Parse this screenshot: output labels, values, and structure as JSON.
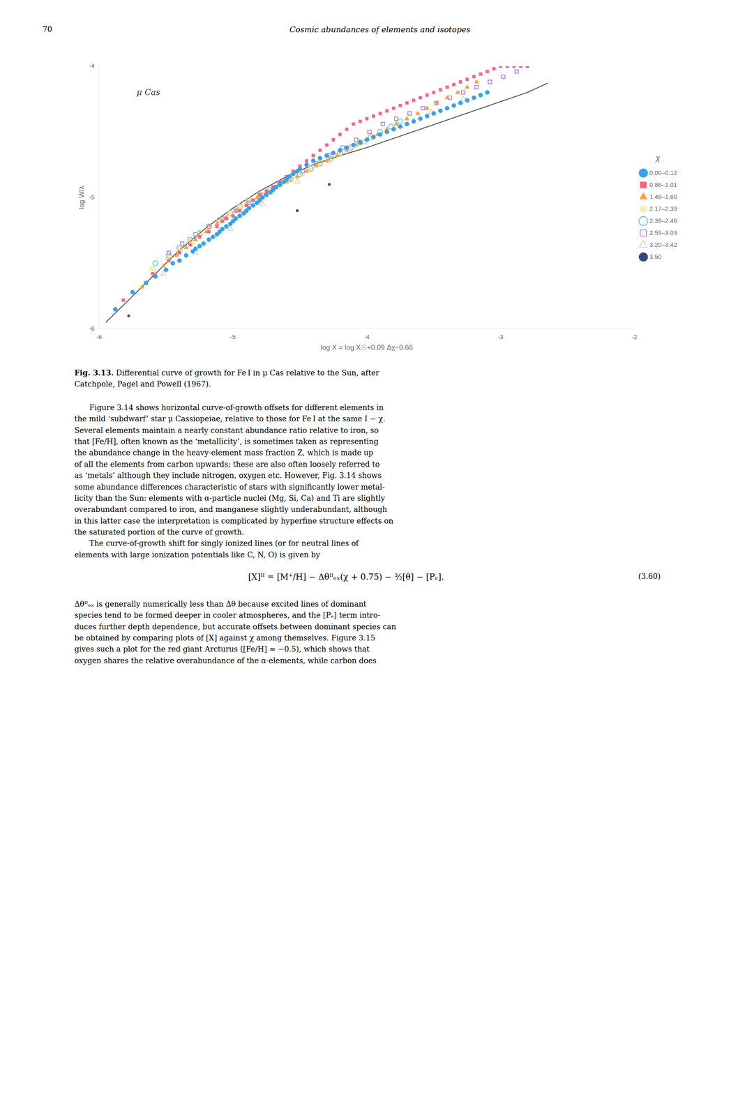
{
  "page": {
    "page_number": "70",
    "running_head": "Cosmic abundances of elements and isotopes",
    "caption_label": "Fig. 3.13.",
    "caption": " Differential curve of growth for Fe I in μ Cas relative to the Sun, after\nCatchpole, Pagel and Powell (1967).",
    "body": [
      "Figure 3.14 shows horizontal curve-of-growth offsets for different elements in\nthe mild ‘subdwarf’ star μ Cassiopeiae, relative to those for Fe I at the same I − χ.\nSeveral elements maintain a nearly constant abundance ratio relative to iron, so\nthat [Fe/H], often known as the ‘metallicity’, is sometimes taken as representing\nthe abundance change in the heavy-element mass fraction Z, which is made up\nof all the elements from carbon upwards; these are also often loosely referred to\nas ‘metals’ although they include nitrogen, oxygen etc. However, Fig. 3.14 shows\nsome abundance differences characteristic of stars with significantly lower metal-\nlicity than the Sun: elements with α-particle nuclei (Mg, Si, Ca) and Ti are slightly\noverabundant compared to iron, and manganese slightly underabundant, although\nin this latter case the interpretation is complicated by hyperfine structure effects on\nthe saturated portion of the curve of growth.",
      "The curve-of-growth shift for singly ionized lines (or for neutral lines of\nelements with large ionization potentials like C, N, O) is given by"
    ],
    "equation": "[X]ᴵᴵ = [M⁺/H] − Δθᴵᴵₑₓ(χ + 0.75) − ³⁄₂[θ] − [Pₑ].",
    "equation_number": "(3.60)",
    "body_after": "Δθᴵᴵₑₓ is generally numerically less than Δθ because excited lines of dominant\nspecies tend to be formed deeper in cooler atmospheres, and the [Pₑ] term intro-\nduces further depth dependence, but accurate offsets between dominant species can\nbe obtained by comparing plots of [X] against χ among themselves. Figure 3.15\ngives such a plot for the red giant Arcturus ([Fe/H] ≃ −0.5), which shows that\noxygen shares the relative overabundance of the α-elements, while carbon does"
  },
  "chart_data": {
    "type": "scatter",
    "xlabel": "log X = log X☉+0.09 Δχ−0.66",
    "ylabel": "log W/λ",
    "xlim": [
      -6.0,
      -2.0
    ],
    "ylim": [
      -6.0,
      -4.0
    ],
    "xticks": [
      -6,
      -5,
      -4,
      -3,
      -2
    ],
    "yticks": [
      -6,
      -5,
      -4
    ],
    "grid": false,
    "legend": "right",
    "legend_title": "χ",
    "annotations": [
      {
        "text": "μ Cas",
        "x": -5.72,
        "y": -4.22
      }
    ],
    "series": [
      {
        "name": "0.00–0.12",
        "marker": "circle",
        "x": [
          -5.88,
          -5.75,
          -5.65,
          -5.58,
          -5.5,
          -5.45,
          -5.4,
          -5.35,
          -5.3,
          -5.28,
          -5.25,
          -5.22,
          -5.18,
          -5.15,
          -5.12,
          -5.1,
          -5.08,
          -5.05,
          -5.02,
          -5.0,
          -4.98,
          -4.95,
          -4.92,
          -4.9,
          -4.88,
          -4.85,
          -4.82,
          -4.8,
          -4.78,
          -4.75,
          -4.72,
          -4.7,
          -4.68,
          -4.65,
          -4.62,
          -4.6,
          -4.58,
          -4.55,
          -4.52,
          -4.5,
          -4.45,
          -4.4,
          -4.35,
          -4.3,
          -4.25,
          -4.2,
          -4.15,
          -4.1,
          -4.05,
          -4.0,
          -3.95,
          -3.9,
          -3.85,
          -3.8,
          -3.75,
          -3.7,
          -3.65,
          -3.6,
          -3.55,
          -3.5,
          -3.45,
          -3.4,
          -3.35,
          -3.3,
          -3.25,
          -3.2,
          -3.15,
          -3.1
        ],
        "values": [
          -5.85,
          -5.72,
          -5.65,
          -5.6,
          -5.55,
          -5.5,
          -5.48,
          -5.44,
          -5.41,
          -5.39,
          -5.37,
          -5.35,
          -5.32,
          -5.3,
          -5.28,
          -5.26,
          -5.24,
          -5.22,
          -5.2,
          -5.18,
          -5.16,
          -5.14,
          -5.12,
          -5.1,
          -5.08,
          -5.06,
          -5.04,
          -5.02,
          -5.0,
          -4.98,
          -4.96,
          -4.94,
          -4.92,
          -4.9,
          -4.88,
          -4.86,
          -4.84,
          -4.82,
          -4.8,
          -4.78,
          -4.75,
          -4.72,
          -4.7,
          -4.68,
          -4.66,
          -4.64,
          -4.62,
          -4.6,
          -4.58,
          -4.56,
          -4.54,
          -4.52,
          -4.5,
          -4.48,
          -4.46,
          -4.44,
          -4.42,
          -4.4,
          -4.38,
          -4.36,
          -4.34,
          -4.32,
          -4.3,
          -4.28,
          -4.26,
          -4.24,
          -4.22,
          -4.2
        ]
      },
      {
        "name": "0.86–1.01",
        "marker": "square",
        "x": [
          -5.82,
          -5.6,
          -5.48,
          -5.4,
          -5.32,
          -5.25,
          -5.18,
          -5.12,
          -5.08,
          -5.05,
          -5.0,
          -4.95,
          -4.9,
          -4.85,
          -4.8,
          -4.75,
          -4.7,
          -4.65,
          -4.6,
          -4.55,
          -4.5,
          -4.45,
          -4.4,
          -4.35,
          -4.3,
          -4.25,
          -4.2,
          -4.15,
          -4.1,
          -4.05,
          -4.0,
          -3.95,
          -3.9,
          -3.85,
          -3.8,
          -3.75,
          -3.7,
          -3.65,
          -3.6,
          -3.55,
          -3.5,
          -3.45,
          -3.4,
          -3.35,
          -3.3,
          -3.25,
          -3.2,
          -3.15,
          -3.1,
          -3.05,
          -3.0,
          -2.95,
          -2.9,
          -2.85,
          -2.8
        ],
        "values": [
          -5.78,
          -5.58,
          -5.48,
          -5.42,
          -5.36,
          -5.3,
          -5.26,
          -5.22,
          -5.18,
          -5.16,
          -5.14,
          -5.1,
          -5.06,
          -5.02,
          -4.98,
          -4.95,
          -4.92,
          -4.88,
          -4.84,
          -4.8,
          -4.76,
          -4.72,
          -4.68,
          -4.64,
          -4.6,
          -4.56,
          -4.52,
          -4.48,
          -4.44,
          -4.42,
          -4.4,
          -4.38,
          -4.36,
          -4.34,
          -4.32,
          -4.3,
          -4.28,
          -4.26,
          -4.24,
          -4.22,
          -4.2,
          -4.18,
          -4.16,
          -4.14,
          -4.12,
          -4.1,
          -4.08,
          -4.06,
          -4.04,
          -4.02,
          -4.0,
          -4.0,
          -4.0,
          -4.0,
          -4.0
        ]
      },
      {
        "name": "1.48–1.60",
        "marker": "triangle",
        "x": [
          -5.68,
          -5.52,
          -5.42,
          -5.35,
          -5.28,
          -5.2,
          -5.12,
          -5.05,
          -4.98,
          -4.9,
          -4.82,
          -4.75,
          -4.68,
          -4.6,
          -4.52,
          -4.45,
          -4.38,
          -4.3,
          -4.22,
          -4.15,
          -4.08,
          -4.0,
          -3.92,
          -3.85,
          -3.78,
          -3.7,
          -3.62,
          -3.55,
          -3.48,
          -3.4,
          -3.32,
          -3.25,
          -3.18
        ],
        "values": [
          -5.68,
          -5.52,
          -5.44,
          -5.38,
          -5.32,
          -5.26,
          -5.2,
          -5.15,
          -5.1,
          -5.05,
          -5.0,
          -4.96,
          -4.92,
          -4.88,
          -4.84,
          -4.8,
          -4.76,
          -4.72,
          -4.68,
          -4.64,
          -4.6,
          -4.56,
          -4.52,
          -4.48,
          -4.44,
          -4.4,
          -4.36,
          -4.32,
          -4.28,
          -4.24,
          -4.2,
          -4.16,
          -4.12
        ]
      },
      {
        "name": "2.17–2.39",
        "marker": "bullseye",
        "x": [
          -5.6,
          -5.48,
          -5.4,
          -5.32,
          -5.25,
          -5.18,
          -5.1,
          -5.02,
          -4.95,
          -4.88,
          -4.8,
          -4.72,
          -4.65,
          -4.57,
          -4.5,
          -4.42,
          -4.35,
          -4.27,
          -4.2,
          -4.12,
          -4.05,
          -3.97
        ],
        "values": [
          -5.55,
          -5.46,
          -5.4,
          -5.34,
          -5.28,
          -5.22,
          -5.17,
          -5.12,
          -5.07,
          -5.02,
          -4.98,
          -4.94,
          -4.9,
          -4.86,
          -4.82,
          -4.78,
          -4.74,
          -4.7,
          -4.66,
          -4.62,
          -4.58,
          -4.54
        ]
      },
      {
        "name": "2.39–2.46",
        "marker": "open_circle",
        "x": [
          -5.58,
          -5.48,
          -5.4,
          -5.32,
          -5.25,
          -5.18,
          -5.1,
          -5.02,
          -4.95,
          -4.88,
          -4.8,
          -4.72,
          -4.65,
          -4.57,
          -4.5,
          -4.42,
          -4.35,
          -4.27,
          -4.2,
          -4.12,
          -4.05,
          -3.97,
          -3.9,
          -3.82,
          -3.75
        ],
        "values": [
          -5.5,
          -5.44,
          -5.38,
          -5.32,
          -5.27,
          -5.22,
          -5.17,
          -5.12,
          -5.07,
          -5.02,
          -4.98,
          -4.94,
          -4.9,
          -4.86,
          -4.82,
          -4.78,
          -4.74,
          -4.7,
          -4.66,
          -4.62,
          -4.58,
          -4.54,
          -4.5,
          -4.46,
          -4.42
        ]
      },
      {
        "name": "2.55–3.03",
        "marker": "open_square",
        "x": [
          -5.48,
          -5.38,
          -5.28,
          -5.18,
          -5.08,
          -4.98,
          -4.88,
          -4.78,
          -4.68,
          -4.58,
          -4.48,
          -4.38,
          -4.28,
          -4.18,
          -4.08,
          -3.98,
          -3.88,
          -3.78,
          -3.68,
          -3.58,
          -3.48,
          -3.38,
          -3.28,
          -3.18,
          -3.08,
          -2.98,
          -2.88
        ],
        "values": [
          -5.42,
          -5.35,
          -5.28,
          -5.22,
          -5.16,
          -5.1,
          -5.04,
          -4.98,
          -4.92,
          -4.86,
          -4.8,
          -4.74,
          -4.68,
          -4.62,
          -4.56,
          -4.5,
          -4.44,
          -4.4,
          -4.36,
          -4.32,
          -4.28,
          -4.24,
          -4.2,
          -4.16,
          -4.12,
          -4.08,
          -4.04
        ]
      },
      {
        "name": "3.20–3.42",
        "marker": "open_triangle",
        "x": [
          -5.52,
          -5.28,
          -5.02,
          -4.78,
          -4.52,
          -4.28,
          -4.02,
          -3.78,
          -3.52,
          -3.28
        ],
        "values": [
          -5.58,
          -5.42,
          -5.24,
          -5.05,
          -4.88,
          -4.72,
          -4.58,
          -4.46,
          -4.35,
          -4.25
        ]
      },
      {
        "name": "3.50",
        "marker": "dot",
        "x": [
          -5.78,
          -4.52,
          -4.28
        ],
        "values": [
          -5.9,
          -5.1,
          -4.9
        ]
      },
      {
        "type": "line",
        "line_style": "solid",
        "x": [
          -5.95,
          -5.8,
          -5.6,
          -5.4,
          -5.2,
          -5.0,
          -4.8,
          -4.6,
          -4.4,
          -4.2,
          -4.0,
          -3.8,
          -3.6,
          -3.4,
          -3.2,
          -3.0,
          -2.8,
          -2.65
        ],
        "values": [
          -5.95,
          -5.8,
          -5.6,
          -5.4,
          -5.23,
          -5.08,
          -4.95,
          -4.84,
          -4.75,
          -4.68,
          -4.62,
          -4.55,
          -4.48,
          -4.41,
          -4.34,
          -4.27,
          -4.2,
          -4.13
        ]
      }
    ]
  }
}
